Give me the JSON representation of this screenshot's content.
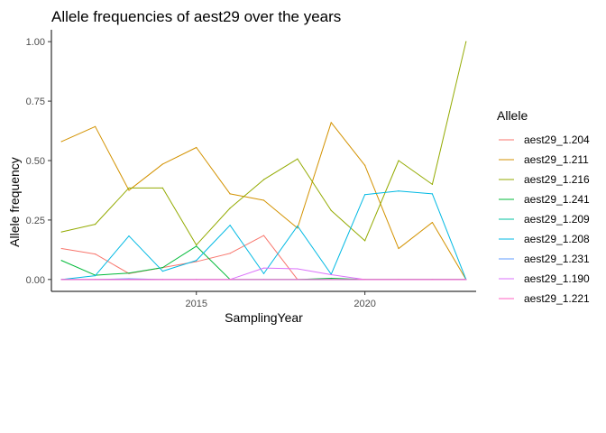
{
  "chart_data": {
    "type": "line",
    "title": "Allele frequencies of aest29 over the years",
    "xlabel": "SamplingYear",
    "ylabel": "Allele frequency",
    "xlim": [
      2010.7,
      2023.3
    ],
    "ylim": [
      -0.05,
      1.05
    ],
    "xticks": [
      2015,
      2020
    ],
    "yticks": [
      0.0,
      0.25,
      0.5,
      0.75,
      1.0
    ],
    "ytick_labels": [
      "0.00",
      "0.25",
      "0.50",
      "0.75",
      "1.00"
    ],
    "grid": false,
    "legend_position": "right",
    "legend_title": "Allele",
    "series": [
      {
        "name": "aest29_1.204",
        "color": "#F8766D",
        "x": [
          2011,
          2012,
          2013,
          2014,
          2015,
          2016,
          2017,
          2018,
          2019,
          2020,
          2021,
          2022,
          2023
        ],
        "y": [
          0.13,
          0.107,
          0.025,
          0.05,
          0.075,
          0.11,
          0.185,
          0.0,
          0.0,
          0.0,
          0.0,
          0.0,
          0.0
        ]
      },
      {
        "name": "aest29_1.211",
        "color": "#D39200",
        "x": [
          2011,
          2012,
          2013,
          2014,
          2015,
          2016,
          2017,
          2018,
          2019,
          2020,
          2021,
          2022,
          2023
        ],
        "y": [
          0.58,
          0.643,
          0.375,
          0.485,
          0.555,
          0.36,
          0.333,
          0.216,
          0.66,
          0.48,
          0.13,
          0.24,
          0.0
        ]
      },
      {
        "name": "aest29_1.216",
        "color": "#93AA00",
        "x": [
          2011,
          2012,
          2013,
          2014,
          2015,
          2016,
          2017,
          2018,
          2019,
          2020,
          2021,
          2022,
          2023
        ],
        "y": [
          0.2,
          0.232,
          0.385,
          0.385,
          0.145,
          0.3,
          0.42,
          0.507,
          0.29,
          0.163,
          0.5,
          0.4,
          1.0
        ]
      },
      {
        "name": "aest29_1.241",
        "color": "#00BA38",
        "x": [
          2011,
          2012,
          2013,
          2014,
          2015,
          2016,
          2017,
          2018,
          2019,
          2020,
          2021,
          2022,
          2023
        ],
        "y": [
          0.08,
          0.018,
          0.027,
          0.05,
          0.14,
          0.0,
          0.0,
          0.0,
          0.005,
          0.0,
          0.0,
          0.0,
          0.0
        ]
      },
      {
        "name": "aest29_1.209",
        "color": "#00C19F",
        "x": [
          2011,
          2012,
          2013,
          2014,
          2015,
          2016,
          2017,
          2018,
          2019,
          2020,
          2021,
          2022,
          2023
        ],
        "y": [
          0.0,
          0.0,
          0.0,
          0.0,
          0.0,
          0.0,
          0.0,
          0.0,
          0.0,
          0.0,
          0.0,
          0.0,
          0.0
        ]
      },
      {
        "name": "aest29_1.208",
        "color": "#00B9E3",
        "x": [
          2011,
          2012,
          2013,
          2014,
          2015,
          2016,
          2017,
          2018,
          2019,
          2020,
          2021,
          2022,
          2023
        ],
        "y": [
          0.0,
          0.016,
          0.183,
          0.035,
          0.08,
          0.228,
          0.025,
          0.225,
          0.022,
          0.357,
          0.372,
          0.36,
          0.0
        ]
      },
      {
        "name": "aest29_1.231",
        "color": "#619CFF",
        "x": [
          2011,
          2012,
          2013,
          2014,
          2015,
          2016,
          2017,
          2018,
          2019,
          2020,
          2021,
          2022,
          2023
        ],
        "y": [
          0.0,
          0.0,
          0.003,
          0.0,
          0.0,
          0.0,
          0.0,
          0.0,
          0.0,
          0.0,
          0.0,
          0.0,
          0.0
        ]
      },
      {
        "name": "aest29_1.190",
        "color": "#DB72FB",
        "x": [
          2011,
          2012,
          2013,
          2014,
          2015,
          2016,
          2017,
          2018,
          2019,
          2020,
          2021,
          2022,
          2023
        ],
        "y": [
          0.0,
          0.0,
          0.0,
          0.0,
          0.0,
          0.0,
          0.048,
          0.045,
          0.02,
          0.0,
          0.0,
          0.0,
          0.0
        ]
      },
      {
        "name": "aest29_1.221",
        "color": "#FF61C3",
        "x": [
          2011,
          2012,
          2013,
          2014,
          2015,
          2016,
          2017,
          2018,
          2019,
          2020,
          2021,
          2022,
          2023
        ],
        "y": [
          0.0,
          0.0,
          0.0,
          0.0,
          0.0,
          0.0,
          0.0,
          0.0,
          0.0,
          0.0,
          0.0,
          0.0,
          0.0
        ]
      }
    ]
  }
}
